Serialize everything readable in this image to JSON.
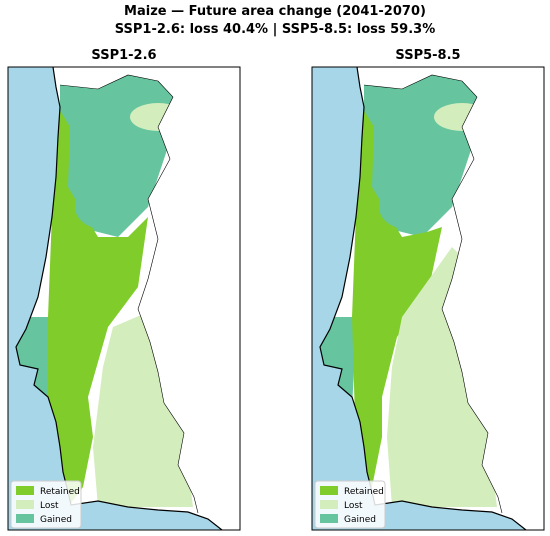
{
  "title": "Maize  —  Future area change (2041-2070)",
  "subtitle": "SSP1-2.6: loss 40.4%  |  SSP5-8.5: loss 59.3%",
  "panels": [
    {
      "title": "SSP1-2.6",
      "legend": [
        {
          "label": "Retained",
          "color": "#7fcc2a"
        },
        {
          "label": "Lost",
          "color": "#d3edbd"
        },
        {
          "label": "Gained",
          "color": "#66c59f"
        }
      ]
    },
    {
      "title": "SSP5-8.5",
      "legend": [
        {
          "label": "Retained",
          "color": "#7fcc2a"
        },
        {
          "label": "Lost",
          "color": "#d3edbd"
        },
        {
          "label": "Gained",
          "color": "#66c59f"
        }
      ]
    }
  ]
}
